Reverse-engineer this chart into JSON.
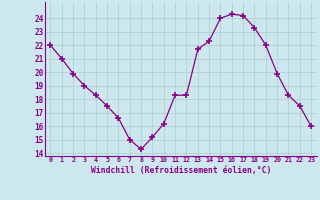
{
  "x": [
    0,
    1,
    2,
    3,
    4,
    5,
    6,
    7,
    8,
    9,
    10,
    11,
    12,
    13,
    14,
    15,
    16,
    17,
    18,
    19,
    20,
    21,
    22,
    23
  ],
  "y": [
    22,
    21,
    19.9,
    19,
    18.3,
    17.5,
    16.6,
    15,
    14.3,
    15.2,
    16.2,
    18.3,
    18.3,
    21.7,
    22.3,
    24,
    24.3,
    24.2,
    23.3,
    22,
    19.9,
    18.3,
    17.5,
    16
  ],
  "line_color": "#880088",
  "marker": "+",
  "marker_color": "#880088",
  "marker_size": 4,
  "marker_linewidth": 1.2,
  "background_color": "#cce8ee",
  "grid_color": "#aacccc",
  "xlabel": "Windchill (Refroidissement éolien,°C)",
  "xlabel_color": "#880088",
  "tick_color": "#880088",
  "spine_color": "#880088",
  "ylim": [
    13.8,
    25.2
  ],
  "xlim": [
    -0.5,
    23.5
  ],
  "yticks": [
    14,
    15,
    16,
    17,
    18,
    19,
    20,
    21,
    22,
    23,
    24
  ],
  "xticks": [
    0,
    1,
    2,
    3,
    4,
    5,
    6,
    7,
    8,
    9,
    10,
    11,
    12,
    13,
    14,
    15,
    16,
    17,
    18,
    19,
    20,
    21,
    22,
    23
  ]
}
